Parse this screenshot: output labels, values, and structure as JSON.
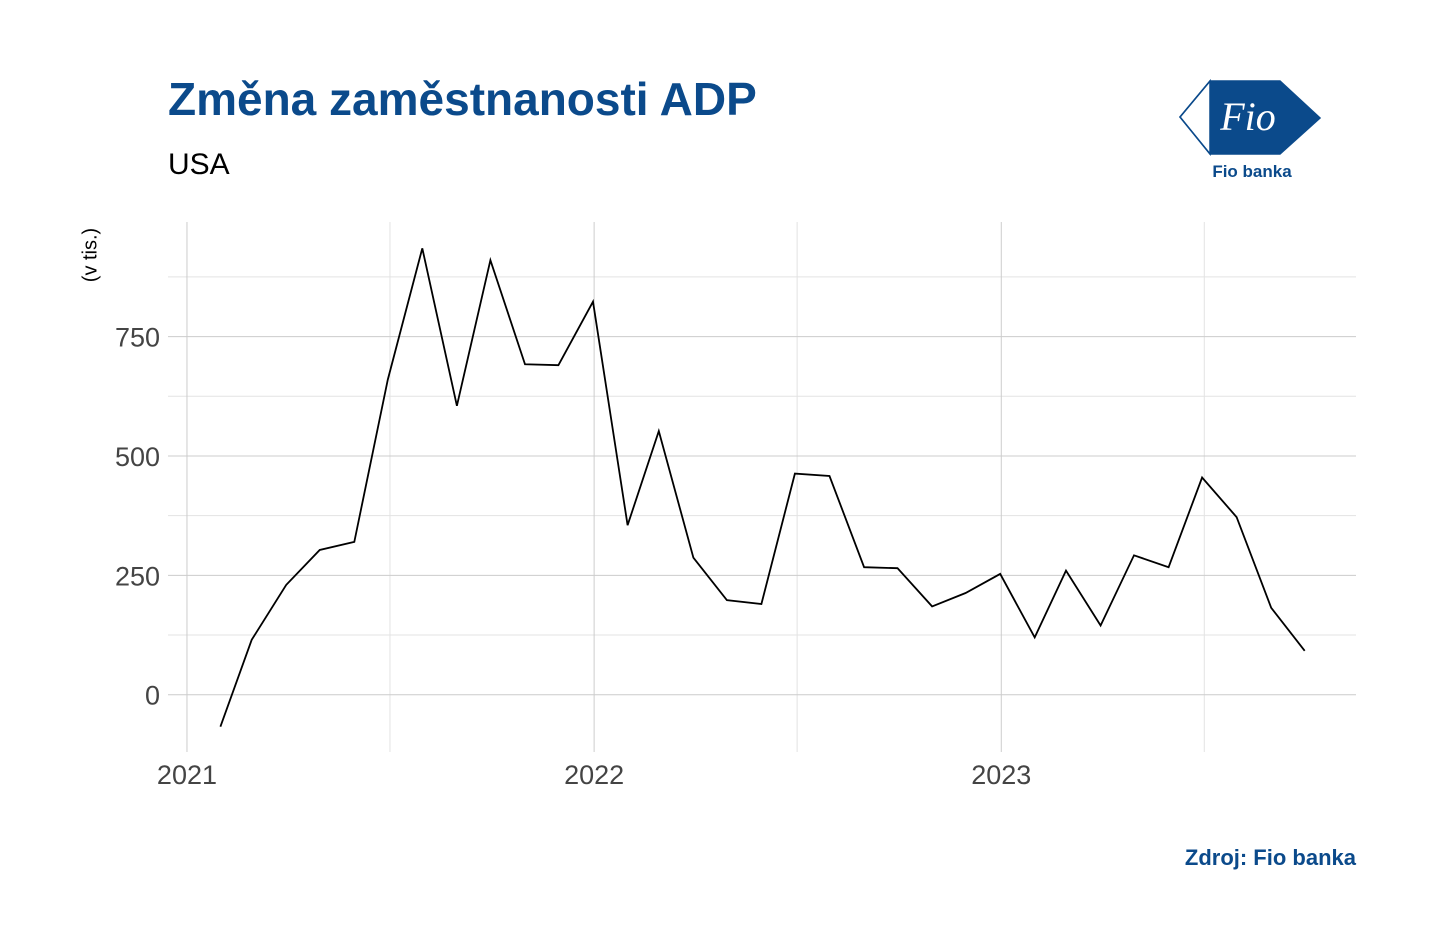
{
  "title": "Změna zaměstnanosti ADP",
  "subtitle": "USA",
  "source": "Zdroj: Fio banka",
  "logo": {
    "caption": "Fio banka",
    "mark": "Fio",
    "color": "#0b4a8b"
  },
  "chart_data": {
    "type": "line",
    "title": "Změna zaměstnanosti ADP",
    "subtitle": "USA",
    "ylabel": "(v tis.)",
    "xlabel": "",
    "ylim": [
      -120,
      990
    ],
    "xlim": [
      "2020-12-15",
      "2023-11-15"
    ],
    "y_ticks": [
      0,
      250,
      500,
      750
    ],
    "x_ticks": [
      {
        "value": "2021-01-01",
        "label": "2021"
      },
      {
        "value": "2022-01-01",
        "label": "2022"
      },
      {
        "value": "2023-01-01",
        "label": "2023"
      }
    ],
    "grid": true,
    "line_color": "#000000",
    "series": [
      {
        "x": [
          "2021-01-31",
          "2021-02-28",
          "2021-03-31",
          "2021-04-30",
          "2021-05-31",
          "2021-06-30",
          "2021-07-31",
          "2021-08-31",
          "2021-09-30",
          "2021-10-31",
          "2021-11-30",
          "2021-12-31",
          "2022-01-31",
          "2022-02-28",
          "2022-03-31",
          "2022-04-30",
          "2022-05-31",
          "2022-06-30",
          "2022-07-31",
          "2022-08-31",
          "2022-09-30",
          "2022-10-31",
          "2022-11-30",
          "2022-12-31",
          "2023-01-31",
          "2023-02-28",
          "2023-03-31",
          "2023-04-30",
          "2023-05-31",
          "2023-06-30",
          "2023-07-31",
          "2023-08-31",
          "2023-09-30"
        ],
        "values": [
          -67,
          115,
          230,
          303,
          320,
          660,
          935,
          605,
          910,
          692,
          690,
          823,
          355,
          552,
          287,
          198,
          190,
          463,
          458,
          267,
          265,
          185,
          213,
          253,
          120,
          260,
          145,
          292,
          267,
          455,
          372,
          182,
          92
        ]
      }
    ]
  }
}
